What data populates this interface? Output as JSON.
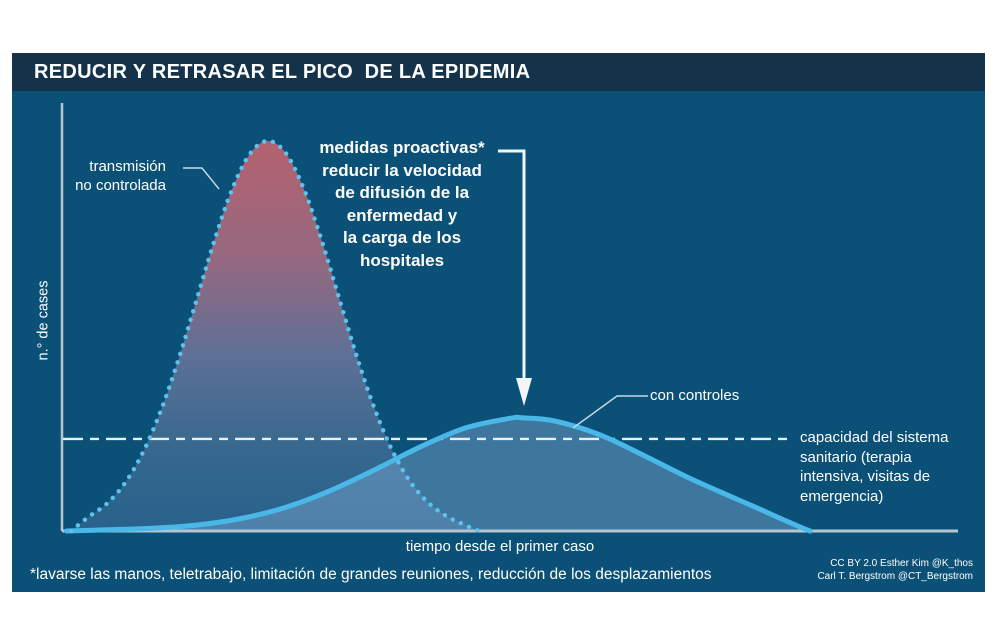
{
  "title": "REDUCIR Y RETRASAR EL PICO  DE LA EPIDEMIA",
  "labels": {
    "uncontrolled_line1": "transmisión",
    "uncontrolled_line2": "no controlada",
    "proactive_lines": [
      "medidas proactivas*",
      "reducir la velocidad",
      "de difusión de la",
      "enfermedad y",
      "la carga de los",
      "hospitales"
    ],
    "with_controls": "con controles",
    "capacity_lines": [
      "capacidad del sistema",
      "sanitario (terapia",
      "intensiva, visitas de",
      "emergencia)"
    ],
    "y_axis": "n.° de cases",
    "x_axis": "tiempo desde el primer caso",
    "footnote": "*lavarse las manos, teletrabajo, limitación de grandes reuniones, reducción de los desplazamientos",
    "credits_line1": "CC BY 2.0  Esther Kim  @K_thos",
    "credits_line2": "Carl T. Bergstrom  @CT_Bergstrom"
  },
  "colors": {
    "page_bg": "#ffffff",
    "chart_bg": "#0b5076",
    "title_bar_bg": "#14334b",
    "text": "#ffffff",
    "axis": "#b6c5d1",
    "dashed_capacity": "#e9eff4",
    "uncontrolled_dots": "#5ec3ec",
    "uncontrolled_gradient": [
      "#b4616f",
      "#96687f",
      "#5e7096",
      "#35688f",
      "#28618b"
    ],
    "controlled_stroke": "#49b8e8",
    "controlled_fill": "rgba(130,173,214,0.42)",
    "connector": "#c3daea",
    "arrow": "#f2f6f9"
  },
  "chart_data": {
    "type": "area",
    "title": "REDUCIR Y RETRASAR EL PICO  DE LA EPIDEMIA",
    "xlabel": "tiempo desde el primer caso",
    "ylabel": "n.° de cases",
    "x_unit": "percent of timeline since first case",
    "y_unit": "percent of uncontrolled peak",
    "capacity_level_pct": 23.6,
    "grid": false,
    "legend": "inline-annotations",
    "series": [
      {
        "name": "transmisión no controlada",
        "style": "dotted",
        "x": [
          1,
          3,
          5,
          7,
          9,
          11,
          13,
          15,
          17,
          19,
          21,
          23,
          25,
          27,
          29,
          31,
          33,
          35,
          37,
          39,
          41,
          43,
          45,
          46.5
        ],
        "y": [
          0,
          3.7,
          7.0,
          12.2,
          20.0,
          30.7,
          44.0,
          59.1,
          74.4,
          87.7,
          96.8,
          100,
          96.8,
          87.7,
          74.4,
          59.1,
          44.0,
          30.7,
          20.0,
          12.2,
          7.0,
          3.7,
          1.5,
          0
        ]
      },
      {
        "name": "con controles",
        "style": "solid",
        "x": [
          0.5,
          5,
          10,
          15,
          20,
          25,
          30,
          35,
          40,
          45,
          50,
          51.5,
          55,
          60,
          65,
          70,
          75,
          78,
          80,
          82,
          83.5
        ],
        "y": [
          0,
          0.3,
          0.7,
          1.5,
          3.2,
          6.1,
          10.4,
          15.8,
          21.6,
          26.4,
          28.9,
          29,
          28.2,
          24.7,
          19.3,
          13.6,
          8.5,
          5.5,
          3.4,
          1.4,
          0
        ]
      }
    ]
  }
}
